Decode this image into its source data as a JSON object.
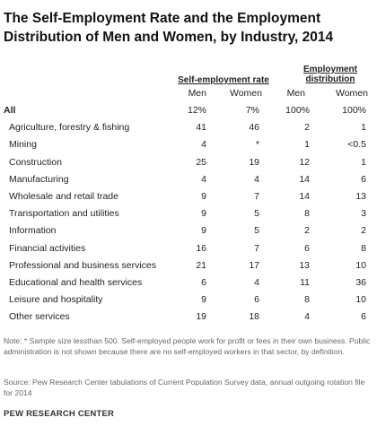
{
  "title": "The Self-Employment Rate and the Employment Distribution of Men and Women, by Industry, 2014",
  "headers": {
    "group1": "Self-employment rate",
    "group2_line1": "Employment",
    "group2_line2": "distribution",
    "men": "Men",
    "women": "Women"
  },
  "rows": [
    {
      "label": "All",
      "se_men": "12%",
      "se_women": "7%",
      "ed_men": "100%",
      "ed_women": "100%"
    },
    {
      "label": "Agriculture, forestry & fishing",
      "se_men": "41",
      "se_women": "46",
      "ed_men": "2",
      "ed_women": "1"
    },
    {
      "label": "Mining",
      "se_men": "4",
      "se_women": "*",
      "ed_men": "1",
      "ed_women": "<0.5"
    },
    {
      "label": "Construction",
      "se_men": "25",
      "se_women": "19",
      "ed_men": "12",
      "ed_women": "1"
    },
    {
      "label": "Manufacturing",
      "se_men": "4",
      "se_women": "4",
      "ed_men": "14",
      "ed_women": "6"
    },
    {
      "label": "Wholesale and retail trade",
      "se_men": "9",
      "se_women": "7",
      "ed_men": "14",
      "ed_women": "13"
    },
    {
      "label": "Transportation and utilities",
      "se_men": "9",
      "se_women": "5",
      "ed_men": "8",
      "ed_women": "3"
    },
    {
      "label": "Information",
      "se_men": "9",
      "se_women": "5",
      "ed_men": "2",
      "ed_women": "2"
    },
    {
      "label": "Financial activities",
      "se_men": "16",
      "se_women": "7",
      "ed_men": "6",
      "ed_women": "8"
    },
    {
      "label": "Professional and business services",
      "se_men": "21",
      "se_women": "17",
      "ed_men": "13",
      "ed_women": "10"
    },
    {
      "label": "Educational and health services",
      "se_men": "6",
      "se_women": "4",
      "ed_men": "11",
      "ed_women": "36"
    },
    {
      "label": "Leisure and hospitality",
      "se_men": "9",
      "se_women": "6",
      "ed_men": "8",
      "ed_women": "10"
    },
    {
      "label": "Other services",
      "se_men": "19",
      "se_women": "18",
      "ed_men": "4",
      "ed_women": "6"
    }
  ],
  "note": "Note: * Sample size lessthan 500. Self-employed people work for profit or fees in their own business. Public administration is not shown because there are no self-employed workers in that sector, by definition.",
  "source": "Source: Pew Research Center tabulations of Current Population Survey data, annual outgoing rotation file for 2014",
  "brand": "PEW RESEARCH CENTER"
}
